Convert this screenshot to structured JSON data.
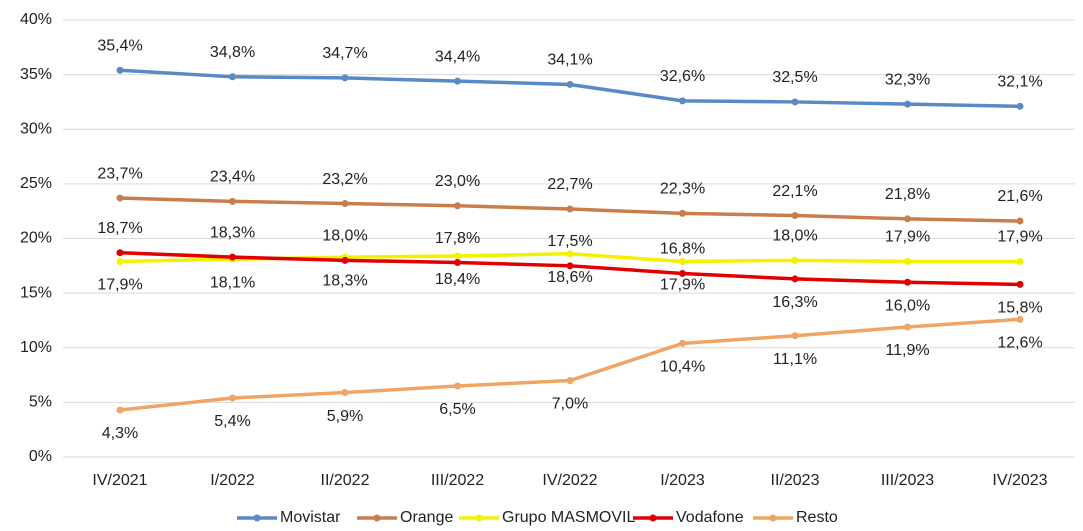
{
  "chart_data": {
    "type": "line",
    "categories": [
      "IV/2021",
      "I/2022",
      "II/2022",
      "III/2022",
      "IV/2022",
      "I/2023",
      "II/2023",
      "III/2023",
      "IV/2023"
    ],
    "ylim": [
      0,
      40
    ],
    "yticks": [
      {
        "value": 0,
        "label": "0%"
      },
      {
        "value": 5,
        "label": "5%"
      },
      {
        "value": 10,
        "label": "10%"
      },
      {
        "value": 15,
        "label": "15%"
      },
      {
        "value": 20,
        "label": "20%"
      },
      {
        "value": 25,
        "label": "25%"
      },
      {
        "value": 30,
        "label": "30%"
      },
      {
        "value": 35,
        "label": "35%"
      },
      {
        "value": 40,
        "label": "40%"
      }
    ],
    "grid": true,
    "legend": "bottom",
    "series": [
      {
        "name": "Movistar",
        "color": "#5a8ac6",
        "values": [
          35.4,
          34.8,
          34.7,
          34.4,
          34.1,
          32.6,
          32.5,
          32.3,
          32.1
        ],
        "value_labels": [
          "35,4%",
          "34,8%",
          "34,7%",
          "34,4%",
          "34,1%",
          "32,6%",
          "32,5%",
          "32,3%",
          "32,1%"
        ]
      },
      {
        "name": "Orange",
        "color": "#c97d4c",
        "values": [
          23.7,
          23.4,
          23.2,
          23.0,
          22.7,
          22.3,
          22.1,
          21.8,
          21.6
        ],
        "value_labels": [
          "23,7%",
          "23,4%",
          "23,2%",
          "23,0%",
          "22,7%",
          "22,3%",
          "22,1%",
          "21,8%",
          "21,6%"
        ]
      },
      {
        "name": "Grupo MASMOVIL",
        "color": "#f2f200",
        "values": [
          17.9,
          18.1,
          18.3,
          18.4,
          18.6,
          17.9,
          18.0,
          17.9,
          17.9
        ],
        "value_labels": [
          "17,9%",
          "18,1%",
          "18,3%",
          "18,4%",
          "18,6%",
          "17,9%",
          "18,0%",
          "17,9%",
          "17,9%"
        ]
      },
      {
        "name": "Vodafone",
        "color": "#e00000",
        "values": [
          18.7,
          18.3,
          18.0,
          17.8,
          17.5,
          16.8,
          16.3,
          16.0,
          15.8
        ],
        "value_labels": [
          "18,7%",
          "18,3%",
          "18,0%",
          "17,8%",
          "17,5%",
          "16,8%",
          "16,3%",
          "16,0%",
          "15,8%"
        ]
      },
      {
        "name": "Resto",
        "color": "#f0a565",
        "values": [
          4.3,
          5.4,
          5.9,
          6.5,
          7.0,
          10.4,
          11.1,
          11.9,
          12.6
        ],
        "value_labels": [
          "4,3%",
          "5,4%",
          "5,9%",
          "6,5%",
          "7,0%",
          "10,4%",
          "11,1%",
          "11,9%",
          "12,6%"
        ]
      }
    ]
  }
}
